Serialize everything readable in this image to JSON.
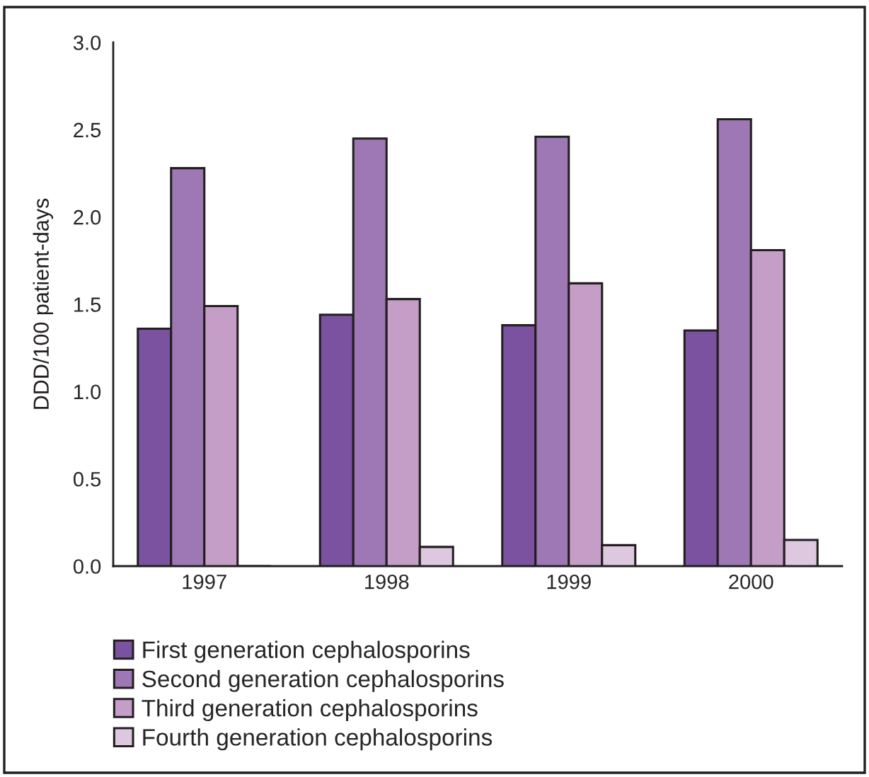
{
  "chart_data": {
    "type": "bar",
    "ylabel": "DDD/100 patient-days",
    "categories": [
      "1997",
      "1998",
      "1999",
      "2000"
    ],
    "series": [
      {
        "name": "First generation cephalosporins",
        "color": "#7b52a0",
        "values": [
          1.36,
          1.44,
          1.38,
          1.35
        ]
      },
      {
        "name": "Second generation cephalosporins",
        "color": "#9e78b4",
        "values": [
          2.28,
          2.45,
          2.46,
          2.56
        ]
      },
      {
        "name": "Third generation cephalosporins",
        "color": "#c59ec8",
        "values": [
          1.49,
          1.53,
          1.62,
          1.81
        ]
      },
      {
        "name": "Fourth generation cephalosporins",
        "color": "#ddc8e0",
        "values": [
          0,
          0.11,
          0.12,
          0.15
        ]
      }
    ],
    "ylim": [
      0,
      3
    ],
    "yticks": [
      {
        "value": 0,
        "label": "0.0"
      },
      {
        "value": 0.5,
        "label": "0.5"
      },
      {
        "value": 1,
        "label": "1.0"
      },
      {
        "value": 1.5,
        "label": "1.5"
      },
      {
        "value": 2,
        "label": "2.0"
      },
      {
        "value": 2.5,
        "label": "2.5"
      },
      {
        "value": 3,
        "label": "3.0"
      }
    ],
    "grid": false,
    "legend": "bottom"
  }
}
